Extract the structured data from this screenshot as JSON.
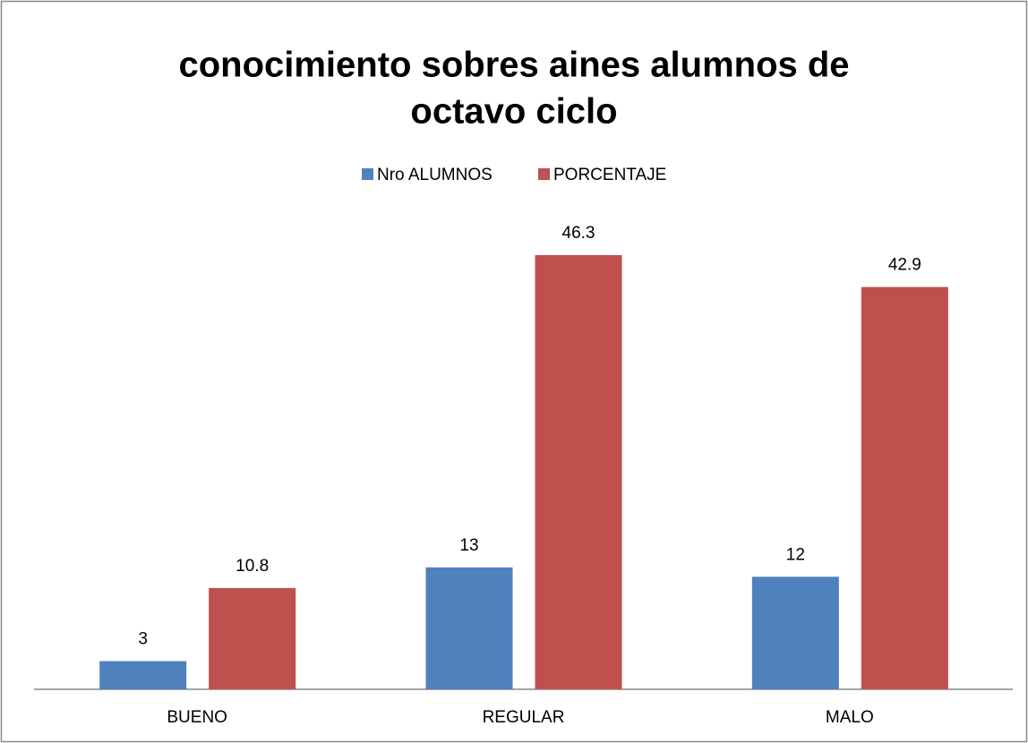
{
  "chart_data": {
    "type": "bar",
    "title": [
      "conocimiento sobres aines alumnos de",
      "octavo ciclo"
    ],
    "categories": [
      "BUENO",
      "REGULAR",
      "MALO"
    ],
    "series": [
      {
        "name": "Nro ALUMNOS",
        "color": "#4f81bd",
        "values": [
          3,
          13,
          12
        ]
      },
      {
        "name": "PORCENTAJE",
        "color": "#c0504d",
        "values": [
          10.8,
          46.3,
          42.9
        ]
      }
    ],
    "legend": "top"
  }
}
